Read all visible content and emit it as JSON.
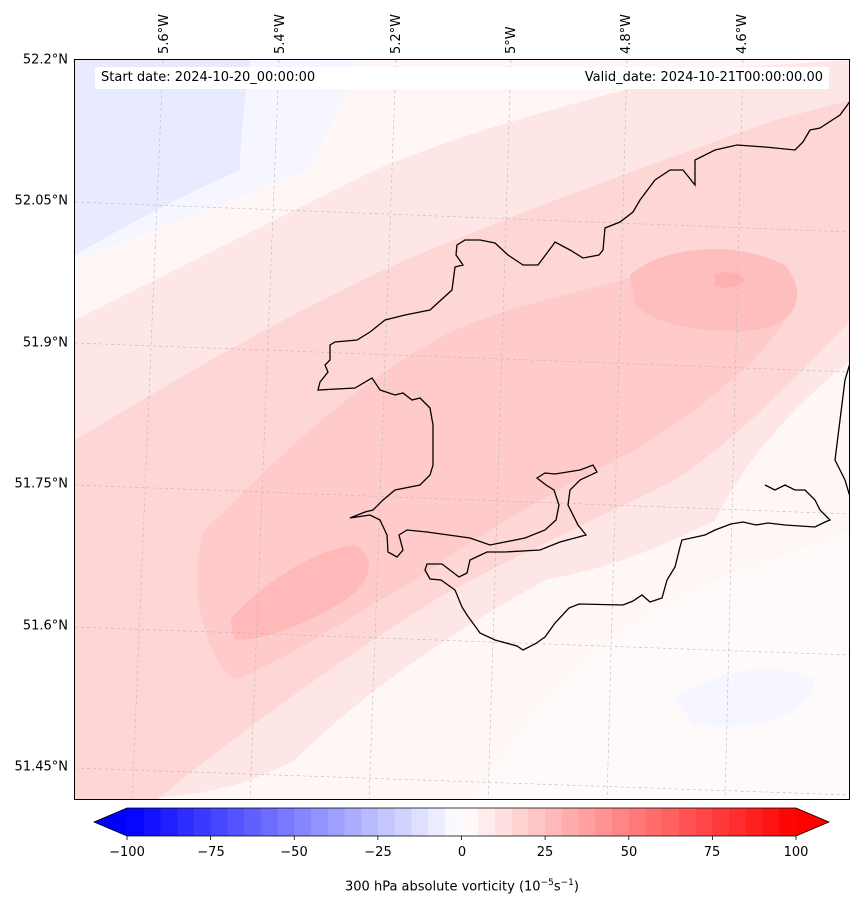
{
  "map": {
    "start_date_label": "Start date: 2024-10-20_00:00:00",
    "valid_date_label": "Valid_date: 2024-10-21T00:00:00.00",
    "longitude_labels": [
      "5.6°W",
      "5.4°W",
      "5.2°W",
      "5°W",
      "4.8°W",
      "4.6°W"
    ],
    "latitude_labels": [
      "52.2°N",
      "52.05°N",
      "51.9°N",
      "51.75°N",
      "51.6°N",
      "51.45°N"
    ],
    "field": "300 hPa absolute vorticity",
    "colors": {
      "coastline": "#000000",
      "gridline": "#b0b0b0",
      "light_blue": "#e8eaff",
      "very_light_blue": "#f5f6ff",
      "white": "#ffffff",
      "very_light_pink": "#fff0f0",
      "light_pink": "#ffe1e1",
      "pink": "#ffd3d3",
      "medium_pink": "#ffc6c6",
      "darker_pink": "#ffb7b7"
    }
  },
  "colorbar": {
    "label_main": "300 hPa absolute vorticity (10",
    "label_exp1": "−5",
    "label_mid": "s",
    "label_exp2": "−1",
    "label_end": ")",
    "ticks": [
      "−100",
      "−75",
      "−50",
      "−25",
      "0",
      "25",
      "50",
      "75",
      "100"
    ],
    "min": -100,
    "max": 100,
    "step": 5,
    "negative_color": "#0000ff",
    "positive_color": "#ff0000"
  }
}
